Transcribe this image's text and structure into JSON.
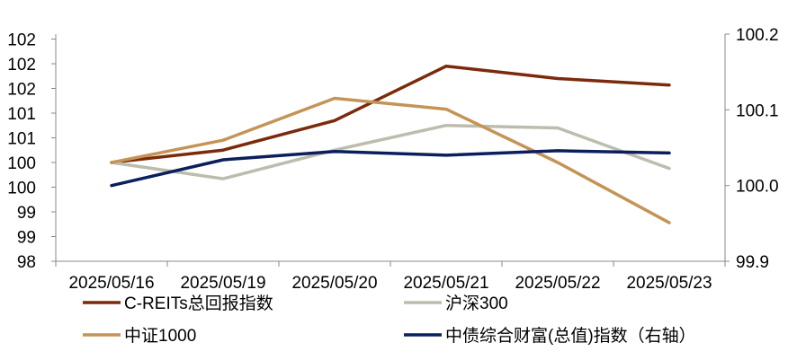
{
  "chart_data": {
    "type": "line",
    "categories": [
      "2025/05/16",
      "2025/05/19",
      "2025/05/20",
      "2025/05/21",
      "2025/05/22",
      "2025/05/23"
    ],
    "left_axis": {
      "ylim": [
        98,
        102.6
      ],
      "ticks": [
        98,
        98.5,
        99,
        99.5,
        100,
        100.5,
        101,
        101.5,
        102,
        102.5
      ],
      "tick_labels": [
        "98",
        "99",
        "99",
        "100",
        "100",
        "101",
        "101",
        "102",
        "102",
        "102"
      ]
    },
    "right_axis": {
      "ylim": [
        99.9,
        100.2
      ],
      "ticks": [
        99.9,
        100.0,
        100.1,
        100.2
      ],
      "tick_labels": [
        "99.9",
        "100.0",
        "100.1",
        "100.2"
      ]
    },
    "grid": false,
    "legend_position": "bottom",
    "series": [
      {
        "name": "C-REITs总回报指数",
        "axis": "left",
        "color": "#7b2a0c",
        "values": [
          100.0,
          100.25,
          100.85,
          101.95,
          101.7,
          101.57
        ]
      },
      {
        "name": "沪深300",
        "axis": "left",
        "color": "#bdbdae",
        "values": [
          100.0,
          99.67,
          100.25,
          100.75,
          100.7,
          99.88
        ]
      },
      {
        "name": "中证1000",
        "axis": "left",
        "color": "#c49456",
        "values": [
          100.0,
          100.45,
          101.3,
          101.08,
          100.0,
          98.78
        ]
      },
      {
        "name": "中债综合财富(总值)指数（右轴）",
        "axis": "right",
        "color": "#0b1f5c",
        "values": [
          100.0,
          100.034,
          100.045,
          100.04,
          100.046,
          100.043
        ]
      }
    ]
  }
}
